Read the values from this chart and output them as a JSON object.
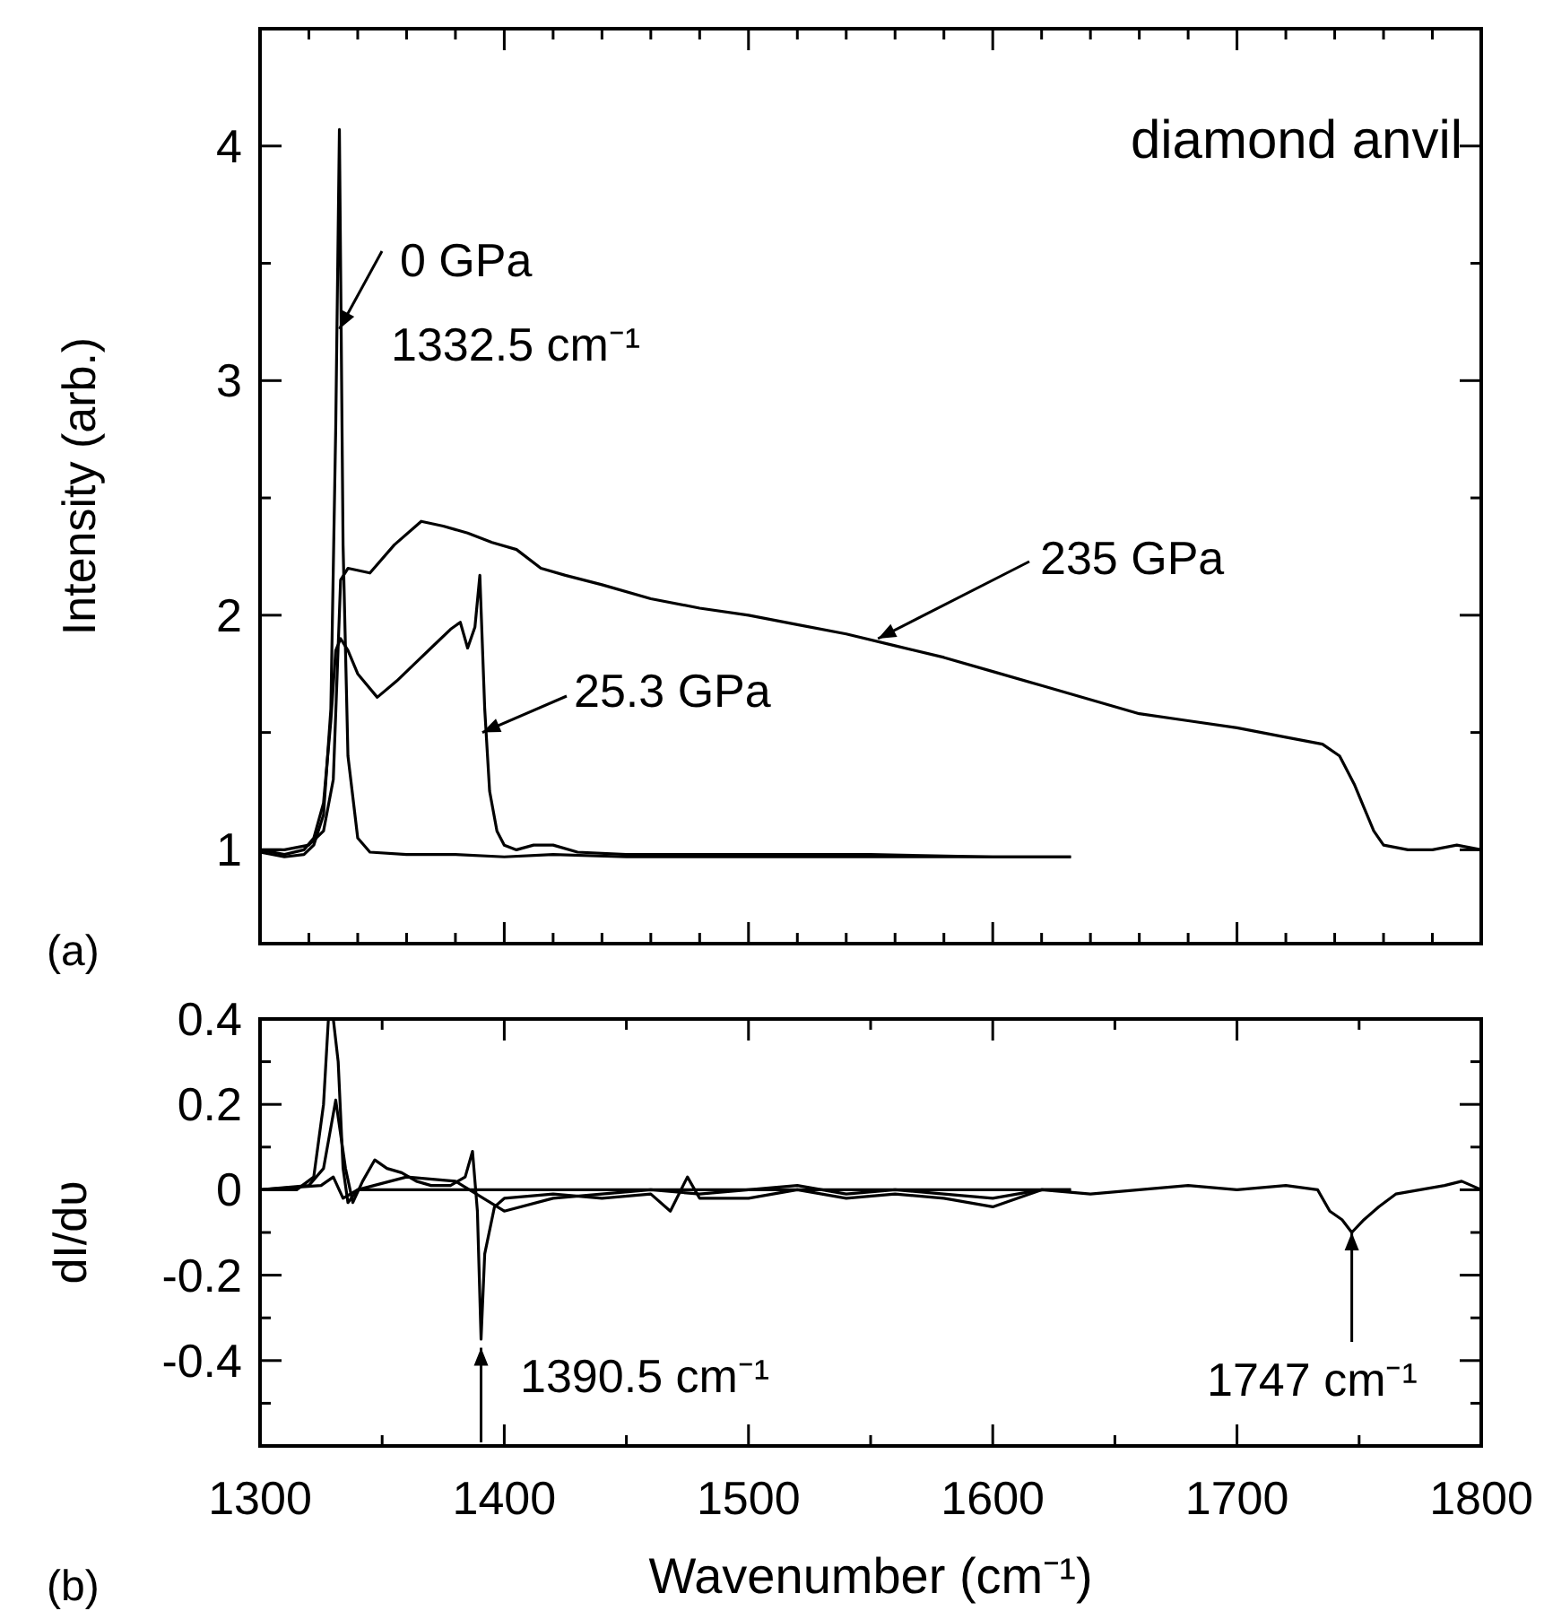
{
  "chart_data": [
    {
      "type": "line",
      "title": "(a)",
      "ylabel": "Intensity (arb.)",
      "xlim": [
        1300,
        1800
      ],
      "ylim": [
        0.6,
        4.5
      ],
      "xticks": [
        1300,
        {
          "value": 1320,
          "label": null
        },
        {
          "value": 1340,
          "label": null
        },
        {
          "value": 1360,
          "label": null
        },
        {
          "value": 1380,
          "label": null
        },
        1400,
        {
          "value": 1420,
          "label": null
        },
        {
          "value": 1440,
          "label": null
        },
        {
          "value": 1460,
          "label": null
        },
        {
          "value": 1480,
          "label": null
        },
        1500,
        {
          "value": 1520,
          "label": null
        },
        {
          "value": 1540,
          "label": null
        },
        {
          "value": 1560,
          "label": null
        },
        {
          "value": 1580,
          "label": null
        },
        1600,
        {
          "value": 1620,
          "label": null
        },
        {
          "value": 1640,
          "label": null
        },
        {
          "value": 1660,
          "label": null
        },
        {
          "value": 1680,
          "label": null
        },
        1700,
        {
          "value": 1720,
          "label": null
        },
        {
          "value": 1740,
          "label": null
        },
        {
          "value": 1760,
          "label": null
        },
        {
          "value": 1780,
          "label": null
        },
        1800
      ],
      "yticks": [
        1,
        {
          "value": 1.5,
          "label": null
        },
        2,
        {
          "value": 2.5,
          "label": null
        },
        3,
        {
          "value": 3.5,
          "label": null
        },
        4
      ],
      "tick_labels": "y",
      "grid": false,
      "marker": "none",
      "line_style": "solid",
      "series": [
        {
          "color": "#000000",
          "x": [
            1300,
            1310,
            1318,
            1322,
            1326,
            1329,
            1331,
            1332.5,
            1334,
            1336,
            1340,
            1345,
            1360,
            1380,
            1400,
            1420,
            1450,
            1480,
            1500,
            1530,
            1560,
            1590,
            1610,
            1632
          ],
          "values": [
            0.99,
            0.97,
            0.98,
            1.02,
            1.15,
            1.6,
            2.8,
            4.07,
            2.3,
            1.4,
            1.05,
            0.99,
            0.98,
            0.98,
            0.97,
            0.98,
            0.97,
            0.97,
            0.97,
            0.97,
            0.97,
            0.97,
            0.97,
            0.97
          ]
        },
        {
          "color": "#000000",
          "x": [
            1300,
            1310,
            1318,
            1322,
            1326,
            1329,
            1331,
            1333,
            1336,
            1340,
            1348,
            1356,
            1364,
            1372,
            1378,
            1382,
            1385,
            1388,
            1390,
            1392,
            1394,
            1397,
            1400,
            1405,
            1412,
            1420,
            1430,
            1450,
            1500,
            1550,
            1600,
            1632
          ],
          "values": [
            1.0,
            0.98,
            1.0,
            1.05,
            1.2,
            1.55,
            1.85,
            1.9,
            1.85,
            1.75,
            1.65,
            1.72,
            1.8,
            1.88,
            1.94,
            1.97,
            1.86,
            1.95,
            2.17,
            1.6,
            1.25,
            1.08,
            1.02,
            1.0,
            1.02,
            1.02,
            0.99,
            0.98,
            0.98,
            0.98,
            0.97,
            0.97
          ]
        },
        {
          "color": "#000000",
          "x": [
            1300,
            1310,
            1320,
            1326,
            1330,
            1333,
            1336,
            1345,
            1355,
            1366,
            1375,
            1385,
            1395,
            1405,
            1415,
            1425,
            1440,
            1460,
            1480,
            1500,
            1520,
            1540,
            1560,
            1580,
            1600,
            1620,
            1640,
            1660,
            1680,
            1700,
            1720,
            1735,
            1742,
            1748,
            1752,
            1756,
            1760,
            1770,
            1780,
            1790,
            1800
          ],
          "values": [
            1.0,
            1.0,
            1.02,
            1.08,
            1.3,
            2.15,
            2.2,
            2.18,
            2.3,
            2.4,
            2.38,
            2.35,
            2.31,
            2.28,
            2.2,
            2.17,
            2.13,
            2.07,
            2.03,
            2.0,
            1.96,
            1.92,
            1.87,
            1.82,
            1.76,
            1.7,
            1.64,
            1.58,
            1.55,
            1.52,
            1.48,
            1.45,
            1.4,
            1.28,
            1.18,
            1.08,
            1.02,
            1.0,
            1.0,
            1.02,
            1.0
          ]
        }
      ],
      "annotations": [
        "diamond anvil",
        {
          "text": "0 GPa",
          "x": 1332.5,
          "y": 3.22
        },
        "1332.5 cm⁻¹",
        {
          "text": "25.3 GPa",
          "x": 1391,
          "y": 1.5
        },
        {
          "text": "235 GPa",
          "x": 1553,
          "y": 1.9
        }
      ]
    },
    {
      "type": "line",
      "title": "(b)",
      "xlabel": "Wavenumber  (cm⁻¹)",
      "ylabel": "dI/dυ",
      "xlim": [
        1300,
        1800
      ],
      "ylim": [
        -0.6,
        0.4
      ],
      "xticks": [
        1300,
        {
          "value": 1350,
          "label": null
        },
        1400,
        {
          "value": 1450,
          "label": null
        },
        1500,
        {
          "value": 1550,
          "label": null
        },
        1600,
        {
          "value": 1650,
          "label": null
        },
        1700,
        {
          "value": 1750,
          "label": null
        },
        1800
      ],
      "yticks": [
        {
          "value": -0.5,
          "label": null
        },
        -0.4,
        {
          "value": -0.3,
          "label": null
        },
        -0.2,
        {
          "value": -0.1,
          "label": null
        },
        0,
        {
          "value": 0.1,
          "label": null
        },
        0.2,
        {
          "value": 0.3,
          "label": null
        },
        0.4
      ],
      "grid": false,
      "marker": "none",
      "line_style": "solid",
      "series": [
        {
          "color": "#000000",
          "x": [
            1300,
            1315,
            1322,
            1326,
            1328,
            1330,
            1332,
            1334,
            1336,
            1340,
            1350,
            1400,
            1450,
            1500,
            1550,
            1600,
            1632
          ],
          "values": [
            0,
            0,
            0.03,
            0.2,
            0.4,
            0.4,
            0.3,
            0.05,
            -0.03,
            0,
            0,
            0,
            0,
            0,
            0,
            0,
            0
          ]
        },
        {
          "color": "#000000",
          "x": [
            1300,
            1320,
            1326,
            1331,
            1335,
            1338,
            1342,
            1347,
            1352,
            1358,
            1364,
            1370,
            1378,
            1384,
            1387,
            1389,
            1390.5,
            1392,
            1396,
            1400,
            1420,
            1440,
            1460,
            1468,
            1475,
            1480,
            1500,
            1520,
            1540,
            1560,
            1580,
            1600,
            1620,
            1632
          ],
          "values": [
            0,
            0.01,
            0.05,
            0.21,
            0.05,
            -0.03,
            0.02,
            0.07,
            0.05,
            0.04,
            0.02,
            0.01,
            0.01,
            0.03,
            0.09,
            -0.05,
            -0.35,
            -0.15,
            -0.04,
            -0.02,
            -0.01,
            -0.02,
            -0.01,
            -0.05,
            0.03,
            -0.02,
            -0.02,
            0,
            -0.02,
            -0.01,
            -0.02,
            -0.04,
            0,
            0
          ]
        },
        {
          "color": "#000000",
          "x": [
            1300,
            1325,
            1330,
            1334,
            1340,
            1360,
            1380,
            1400,
            1420,
            1440,
            1460,
            1480,
            1500,
            1520,
            1540,
            1560,
            1580,
            1600,
            1620,
            1640,
            1660,
            1680,
            1700,
            1720,
            1733,
            1738,
            1743,
            1747,
            1752,
            1758,
            1765,
            1775,
            1785,
            1792,
            1800
          ],
          "values": [
            0,
            0.01,
            0.03,
            -0.02,
            0,
            0.03,
            0.02,
            -0.05,
            -0.02,
            -0.01,
            0,
            -0.01,
            0,
            0.01,
            -0.01,
            0,
            -0.01,
            -0.02,
            0,
            -0.01,
            0,
            0.01,
            0,
            0.01,
            0,
            -0.05,
            -0.07,
            -0.1,
            -0.07,
            -0.04,
            -0.01,
            0,
            0.01,
            0.02,
            0
          ]
        }
      ],
      "annotations": [
        {
          "text": "1390.5 cm⁻¹",
          "x": 1390.5,
          "y": -0.37
        },
        {
          "text": "1747 cm⁻¹",
          "x": 1747,
          "y": -0.1
        }
      ]
    }
  ]
}
